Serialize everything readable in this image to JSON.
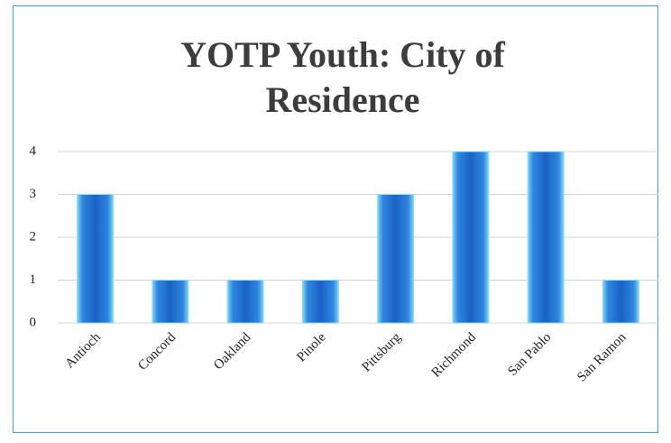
{
  "chart_data": {
    "type": "bar",
    "title": "YOTP Youth: City of Residence",
    "categories": [
      "Antioch",
      "Concord",
      "Oakland",
      "Pinole",
      "Pittsburg",
      "Richmond",
      "San Pablo",
      "San Ramon"
    ],
    "values": [
      3,
      1,
      1,
      1,
      3,
      4,
      4,
      1
    ],
    "color": "#1f6fd0",
    "ylim": [
      0,
      4
    ],
    "yticks": [
      0,
      1,
      2,
      3,
      4
    ],
    "grid": true
  }
}
